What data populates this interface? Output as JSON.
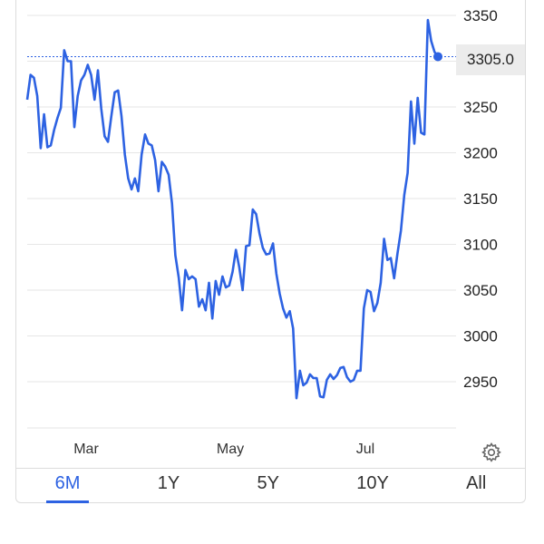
{
  "chart_data": {
    "type": "line",
    "x_tick_labels": [
      "Mar",
      "May",
      "Jul"
    ],
    "y_ticks": [
      2950,
      3000,
      3050,
      3100,
      3150,
      3200,
      3250,
      3300,
      3350
    ],
    "y_tick_labels": [
      "2950",
      "3000",
      "3050",
      "3100",
      "3150",
      "3200",
      "3250",
      "",
      "3350"
    ],
    "ylim": [
      2900,
      3360
    ],
    "grid": true,
    "current_value": 3305.0,
    "current_value_label": "3305.0",
    "series": [
      {
        "color": "#2d62e2",
        "values": [
          3258,
          3285,
          3282,
          3262,
          3205,
          3242,
          3206,
          3208,
          3225,
          3238,
          3249,
          3312,
          3300,
          3300,
          3228,
          3262,
          3279,
          3285,
          3296,
          3285,
          3258,
          3290,
          3248,
          3218,
          3212,
          3240,
          3266,
          3268,
          3240,
          3198,
          3172,
          3160,
          3172,
          3158,
          3198,
          3220,
          3210,
          3208,
          3192,
          3158,
          3190,
          3185,
          3176,
          3145,
          3088,
          3064,
          3028,
          3072,
          3062,
          3065,
          3062,
          3032,
          3040,
          3028,
          3058,
          3019,
          3060,
          3045,
          3065,
          3053,
          3055,
          3070,
          3094,
          3075,
          3050,
          3098,
          3099,
          3138,
          3133,
          3112,
          3096,
          3089,
          3090,
          3101,
          3068,
          3046,
          3030,
          3020,
          3027,
          3008,
          2932,
          2962,
          2946,
          2949,
          2958,
          2954,
          2954,
          2934,
          2933,
          2952,
          2958,
          2953,
          2957,
          2965,
          2966,
          2955,
          2950,
          2952,
          2962,
          2962,
          3030,
          3050,
          3048,
          3027,
          3036,
          3058,
          3106,
          3083,
          3085,
          3063,
          3090,
          3115,
          3154,
          3178,
          3256,
          3210,
          3260,
          3222,
          3220,
          3345,
          3322,
          3310,
          3305
        ]
      }
    ]
  },
  "tabs": [
    {
      "label": "6M",
      "active": true
    },
    {
      "label": "1Y",
      "active": false
    },
    {
      "label": "5Y",
      "active": false
    },
    {
      "label": "10Y",
      "active": false
    },
    {
      "label": "All",
      "active": false
    }
  ],
  "icons": {
    "settings": "gear-icon"
  },
  "colors": {
    "accent": "#2d62e2",
    "grid": "#e6e6e6",
    "badge_bg": "#ececec"
  }
}
